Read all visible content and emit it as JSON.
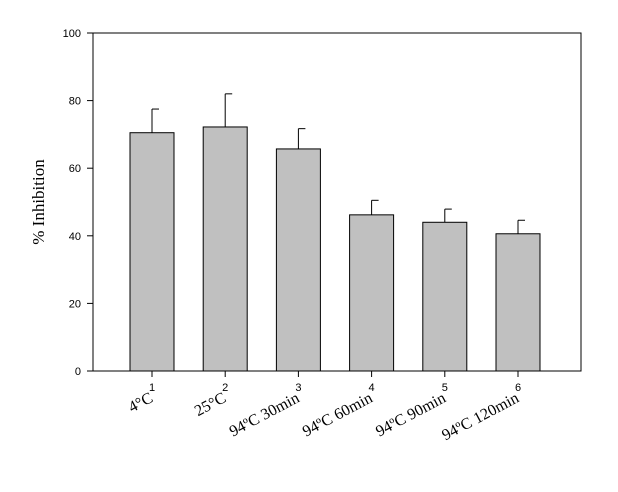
{
  "chart_data": {
    "type": "bar",
    "ylabel": "% Inhibition",
    "ylim": [
      0,
      100
    ],
    "yticks": [
      "0",
      "20",
      "40",
      "60",
      "80",
      "100"
    ],
    "xticks": [
      "1",
      "2",
      "3",
      "4",
      "5",
      "6"
    ],
    "categories": [
      "4°C",
      "25°C",
      "94ºC 30min",
      "94ºC 60min",
      "94ºC 90min",
      "94ºC 120min"
    ],
    "values": [
      70.5,
      72.2,
      65.7,
      46.2,
      44.0,
      40.6
    ],
    "errors": [
      7.0,
      9.8,
      6.0,
      4.3,
      3.9,
      4.0
    ],
    "grid": false,
    "colors": {
      "bar_fill": "#c0c0c0",
      "bar_stroke": "#000000",
      "axis": "#000000"
    }
  }
}
